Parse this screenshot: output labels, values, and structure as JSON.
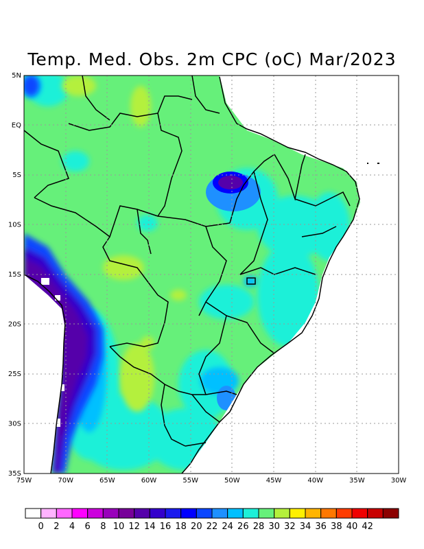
{
  "title": "Temp. Med. Obs. 2m CPC (oC) Mar/2023",
  "lat_labels": [
    "5N",
    "EQ",
    "5S",
    "10S",
    "15S",
    "20S",
    "25S",
    "30S",
    "35S"
  ],
  "lon_labels": [
    "75W",
    "70W",
    "65W",
    "60W",
    "55W",
    "50W",
    "45W",
    "40W",
    "35W",
    "30W"
  ],
  "colorbar": {
    "ticks": [
      "0",
      "2",
      "4",
      "6",
      "8",
      "10",
      "12",
      "14",
      "16",
      "18",
      "20",
      "22",
      "24",
      "26",
      "28",
      "30",
      "32",
      "34",
      "36",
      "38",
      "40",
      "42"
    ],
    "colors": [
      "#ffffff",
      "#ffb3ff",
      "#ff66ff",
      "#ff00ff",
      "#cc00dd",
      "#9900bb",
      "#770099",
      "#5500aa",
      "#3300cc",
      "#1a1aee",
      "#0000ff",
      "#0a46ff",
      "#1e90ff",
      "#00c0ff",
      "#1ef0d8",
      "#66f07a",
      "#b4f03c",
      "#fff000",
      "#ffb400",
      "#ff7800",
      "#ff3c00",
      "#f00000",
      "#c80000",
      "#8c0000"
    ]
  }
}
